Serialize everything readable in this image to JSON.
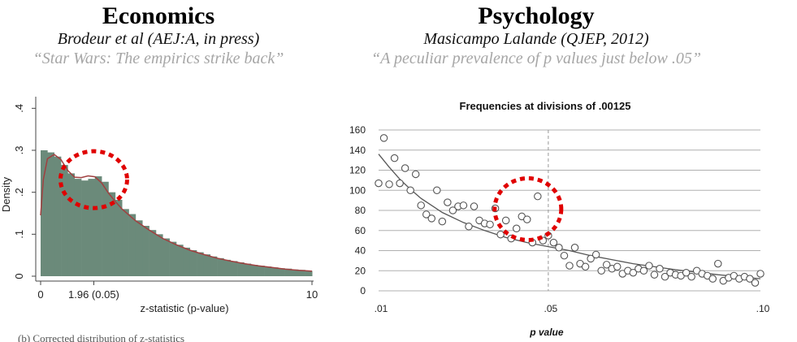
{
  "left": {
    "title": "Economics",
    "citation": "Brodeur et al (AEJ:A,  in press)",
    "quote": "“Star Wars: The empirics strike back”"
  },
  "right": {
    "title": "Psychology",
    "citation": "Masicampo Lalande (QJEP, 2012)",
    "quote": "“A peculiar prevalence of p values just below .05”"
  },
  "caption_partial": "(b) Corrected distribution of z-statistics",
  "colors": {
    "histogram": "#6b8a7a",
    "density_curve": "#a04040",
    "highlight_circle": "#e00000",
    "points": "#555555"
  },
  "chart_data": [
    {
      "type": "bar",
      "title": "",
      "xlabel": "z-statistic (p-value)",
      "ylabel": "Density",
      "xlim": [
        0,
        10
      ],
      "ylim": [
        0,
        0.42
      ],
      "xticks": [
        {
          "value": 0,
          "label": "0"
        },
        {
          "value": 1.96,
          "label": "1.96 (0.05)"
        },
        {
          "value": 10,
          "label": "10"
        }
      ],
      "yticks": [
        {
          "value": 0,
          "label": "0"
        },
        {
          "value": 0.1,
          "label": ".1"
        },
        {
          "value": 0.2,
          "label": ".2"
        },
        {
          "value": 0.3,
          "label": ".3"
        },
        {
          "value": 0.4,
          "label": ".4"
        }
      ],
      "series": [
        {
          "kind": "histogram",
          "x": [
            0,
            0.25,
            0.5,
            0.75,
            1,
            1.25,
            1.5,
            1.75,
            2,
            2.25,
            2.5,
            2.75,
            3,
            3.25,
            3.5,
            3.75,
            4,
            4.25,
            4.5,
            4.75,
            5,
            5.25,
            5.5,
            5.75,
            6,
            6.25,
            6.5,
            6.75,
            7,
            7.25,
            7.5,
            7.75,
            8,
            8.25,
            8.5,
            8.75,
            9,
            9.25,
            9.5,
            9.75,
            10
          ],
          "values": [
            0.3,
            0.295,
            0.285,
            0.265,
            0.245,
            0.232,
            0.228,
            0.232,
            0.238,
            0.225,
            0.2,
            0.182,
            0.16,
            0.148,
            0.133,
            0.12,
            0.11,
            0.1,
            0.09,
            0.082,
            0.075,
            0.068,
            0.062,
            0.057,
            0.052,
            0.047,
            0.043,
            0.039,
            0.036,
            0.033,
            0.03,
            0.027,
            0.025,
            0.023,
            0.021,
            0.019,
            0.018,
            0.016,
            0.015,
            0.013,
            0.012
          ]
        },
        {
          "kind": "density",
          "x": [
            0,
            0.1,
            0.25,
            0.5,
            0.75,
            1,
            1.25,
            1.5,
            1.75,
            2,
            2.25,
            2.5,
            2.75,
            3,
            3.5,
            4,
            4.5,
            5,
            5.5,
            6,
            6.5,
            7,
            7.5,
            8,
            8.5,
            9,
            9.5,
            10
          ],
          "values": [
            0.145,
            0.23,
            0.28,
            0.29,
            0.278,
            0.252,
            0.236,
            0.235,
            0.239,
            0.237,
            0.222,
            0.198,
            0.178,
            0.16,
            0.132,
            0.11,
            0.09,
            0.075,
            0.062,
            0.052,
            0.043,
            0.036,
            0.03,
            0.025,
            0.021,
            0.017,
            0.014,
            0.012
          ]
        }
      ],
      "annotation": {
        "type": "dotted-circle",
        "center_x": 1.96,
        "center_y": 0.23
      }
    },
    {
      "type": "scatter",
      "title": "Frequencies at divisions of .00125",
      "xlabel": "p value",
      "ylabel": "",
      "xlim": [
        0.01,
        0.1
      ],
      "ylim": [
        0,
        160
      ],
      "grid": true,
      "xticks": [
        {
          "value": 0.01,
          "label": ".01"
        },
        {
          "value": 0.05,
          "label": ".05"
        },
        {
          "value": 0.1,
          "label": ".10"
        }
      ],
      "yticks": [
        0,
        20,
        40,
        60,
        80,
        100,
        120,
        140,
        160
      ],
      "reference_line_x": 0.05,
      "series": [
        {
          "kind": "points",
          "x": [
            0.01,
            0.01125,
            0.0125,
            0.01375,
            0.015,
            0.01625,
            0.0175,
            0.01875,
            0.02,
            0.02125,
            0.0225,
            0.02375,
            0.025,
            0.02625,
            0.0275,
            0.02875,
            0.03,
            0.03125,
            0.0325,
            0.03375,
            0.035,
            0.03625,
            0.0375,
            0.03875,
            0.04,
            0.04125,
            0.0425,
            0.04375,
            0.045,
            0.04625,
            0.0475,
            0.04875,
            0.05,
            0.05125,
            0.0525,
            0.05375,
            0.055,
            0.05625,
            0.0575,
            0.05875,
            0.06,
            0.06125,
            0.0625,
            0.06375,
            0.065,
            0.06625,
            0.0675,
            0.06875,
            0.07,
            0.07125,
            0.0725,
            0.07375,
            0.075,
            0.07625,
            0.0775,
            0.07875,
            0.08,
            0.08125,
            0.0825,
            0.08375,
            0.085,
            0.08625,
            0.0875,
            0.08875,
            0.09,
            0.09125,
            0.0925,
            0.09375,
            0.095,
            0.09625,
            0.0975,
            0.09875,
            0.1
          ],
          "values": [
            107,
            152,
            106,
            132,
            107,
            122,
            100,
            116,
            85,
            76,
            72,
            100,
            69,
            88,
            80,
            84,
            85,
            64,
            84,
            70,
            67,
            66,
            82,
            56,
            70,
            52,
            62,
            74,
            71,
            48,
            94,
            50,
            55,
            48,
            43,
            35,
            25,
            43,
            27,
            24,
            32,
            36,
            20,
            26,
            22,
            24,
            17,
            20,
            18,
            22,
            20,
            25,
            16,
            22,
            14,
            18,
            16,
            15,
            18,
            14,
            20,
            17,
            15,
            12,
            27,
            10,
            13,
            15,
            12,
            14,
            12,
            8,
            17
          ]
        },
        {
          "kind": "fitted-curve",
          "x": [
            0.01,
            0.0125,
            0.015,
            0.0175,
            0.02,
            0.025,
            0.03,
            0.035,
            0.04,
            0.045,
            0.05,
            0.055,
            0.06,
            0.07,
            0.08,
            0.09,
            0.1
          ],
          "values": [
            136,
            123,
            111,
            101,
            92,
            78,
            68,
            60,
            53,
            48,
            44,
            40,
            35,
            27,
            21,
            16,
            12
          ]
        }
      ],
      "annotation": {
        "type": "dotted-circle",
        "center_x": 0.0475,
        "center_y": 78
      }
    }
  ]
}
